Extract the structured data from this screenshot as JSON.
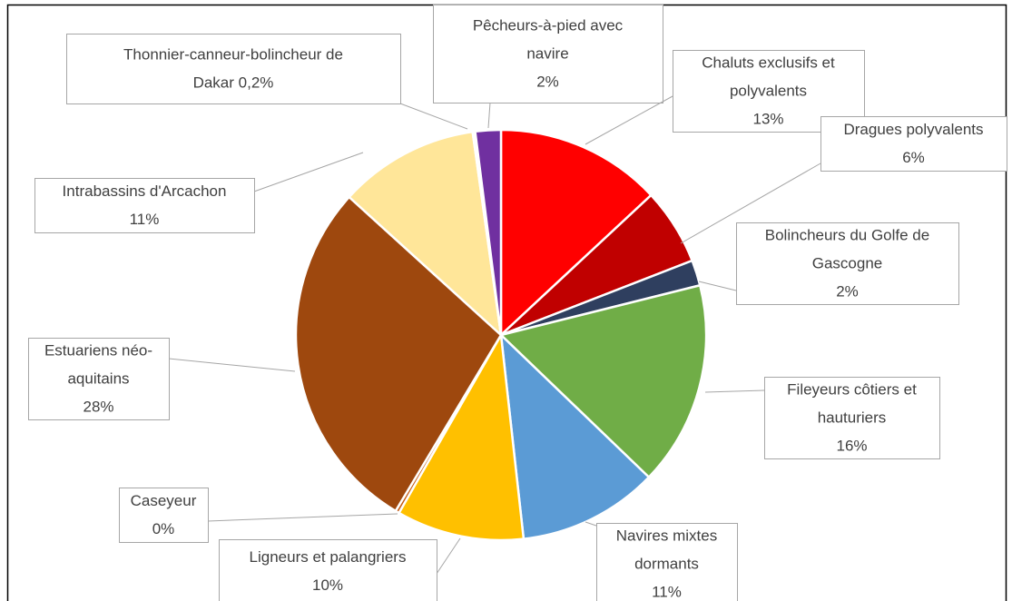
{
  "chart_data": {
    "type": "pie",
    "title": "",
    "slices": [
      {
        "label": "Pêcheurs-à-pied avec navire",
        "label_lines": [
          "Pêcheurs-à-pied avec",
          "navire",
          "2%"
        ],
        "value_label": "2%",
        "value": 2,
        "color": "#FFFFFF"
      },
      {
        "label": "Chaluts exclusifs et polyvalents",
        "label_lines": [
          "Chaluts exclusifs et",
          "polyvalents",
          "13%"
        ],
        "value_label": "13%",
        "value": 13,
        "color": "#FF0000"
      },
      {
        "label": "Dragues polyvalents",
        "label_lines": [
          "Dragues polyvalents",
          "6%"
        ],
        "value_label": "6%",
        "value": 6,
        "color": "#C00000"
      },
      {
        "label": "Bolincheurs du Golfe de Gascogne",
        "label_lines": [
          "Bolincheurs du Golfe de",
          "Gascogne",
          "2%"
        ],
        "value_label": "2%",
        "value": 2,
        "color": "#2F3F5F"
      },
      {
        "label": "Fileyeurs côtiers et hauturiers",
        "label_lines": [
          "Fileyeurs côtiers et",
          "hauturiers",
          "16%"
        ],
        "value_label": "16%",
        "value": 16,
        "color": "#70AD47"
      },
      {
        "label": "Navires mixtes dormants",
        "label_lines": [
          "Navires mixtes",
          "dormants",
          "11%"
        ],
        "value_label": "11%",
        "value": 11,
        "color": "#5B9BD5"
      },
      {
        "label": "Ligneurs et palangriers",
        "label_lines": [
          "Ligneurs et palangriers",
          "10%"
        ],
        "value_label": "10%",
        "value": 10,
        "color": "#FFC000"
      },
      {
        "label": "Caseyeur",
        "label_lines": [
          "Caseyeur",
          "0%"
        ],
        "value_label": "0%",
        "value": 0.3,
        "color": "#C55A11"
      },
      {
        "label": "Estuariens néo-aquitains",
        "label_lines": [
          "Estuariens néo-",
          "aquitains",
          "28%"
        ],
        "value_label": "28%",
        "value": 28,
        "color": "#9E480E"
      },
      {
        "label": "Intrabassins d'Arcachon",
        "label_lines": [
          "Intrabassins d'Arcachon",
          "11%"
        ],
        "value_label": "11%",
        "value": 11,
        "color": "#FFE699"
      },
      {
        "label": "Thonnier-canneur-bolincheur de Dakar",
        "label_lines": [
          "Thonnier-canneur-bolincheur de",
          "Dakar 0,2%"
        ],
        "value_label": "0,2%",
        "value": 0.2,
        "color": "#FFFFFF"
      },
      {
        "label": "Pêcheurs-à-pied avec navire (violet)",
        "label_lines": [],
        "value_label": "",
        "value": 2,
        "color": "#7030A0"
      }
    ]
  }
}
